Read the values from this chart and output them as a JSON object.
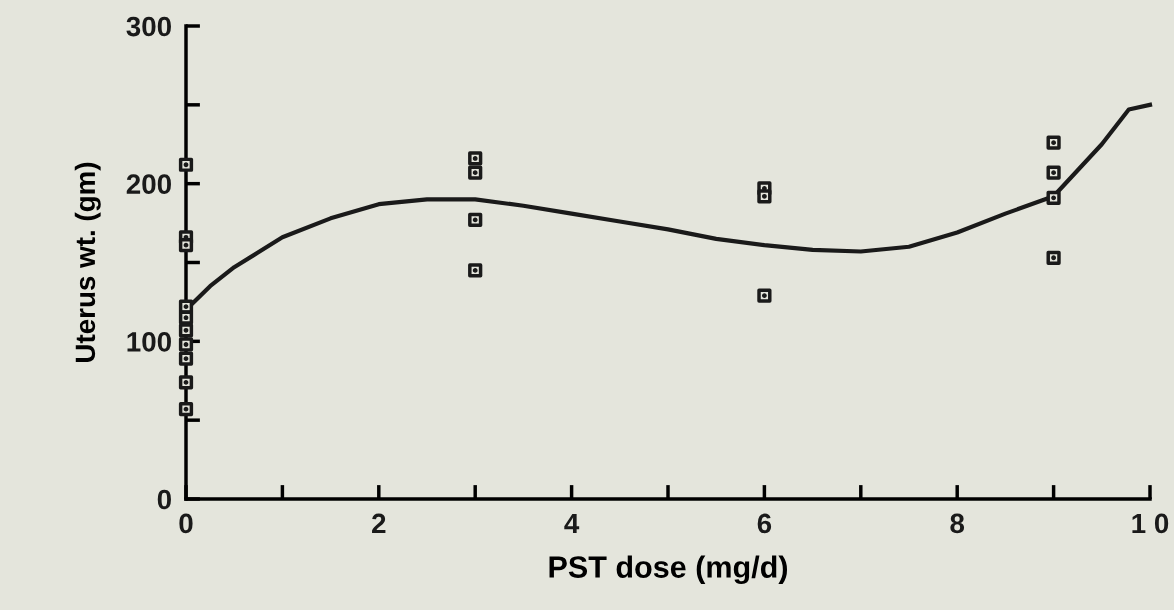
{
  "chart_data": {
    "type": "scatter",
    "xlabel": "PST dose (mg/d)",
    "ylabel": "Uterus wt. (gm)",
    "xlim": [
      0,
      10
    ],
    "ylim": [
      0,
      300
    ],
    "xticks": [
      0,
      {
        "value": 1,
        "label": null
      },
      2,
      {
        "value": 3,
        "label": null
      },
      4,
      {
        "value": 5,
        "label": null
      },
      6,
      {
        "value": 7,
        "label": null
      },
      8,
      {
        "value": 9,
        "label": null
      },
      {
        "value": 10,
        "label": "1 0"
      }
    ],
    "yticks": [
      0,
      {
        "value": 50,
        "label": null
      },
      100,
      {
        "value": 150,
        "label": null
      },
      200,
      {
        "value": 250,
        "label": null
      },
      300
    ],
    "grid": false,
    "legend": false,
    "series": [
      {
        "marker": "square",
        "color": "#1a1a1a",
        "x": [
          0,
          0,
          0,
          0,
          0,
          0,
          0,
          0,
          0,
          0,
          3,
          3,
          3,
          3,
          6,
          6,
          6,
          9,
          9,
          9,
          9
        ],
        "values": [
          212,
          166,
          161,
          122,
          115,
          107,
          98,
          89,
          74,
          57,
          216,
          207,
          177,
          145,
          197,
          192,
          129,
          226,
          207,
          191,
          153
        ]
      },
      {
        "type": "line",
        "marker": "none",
        "line_style": "solid",
        "color": "#1a1a1a",
        "x": [
          0,
          0.25,
          0.5,
          1,
          1.5,
          2,
          2.5,
          3,
          3.5,
          4,
          4.5,
          5,
          5.5,
          6,
          6.5,
          7,
          7.5,
          8,
          8.5,
          9,
          9.5,
          9.78,
          10
        ],
        "values": [
          120,
          135,
          147,
          166,
          178,
          187,
          190,
          190,
          186,
          181,
          176,
          171,
          165,
          161,
          158,
          157,
          160,
          169,
          181,
          192,
          225,
          247,
          250
        ]
      }
    ]
  }
}
